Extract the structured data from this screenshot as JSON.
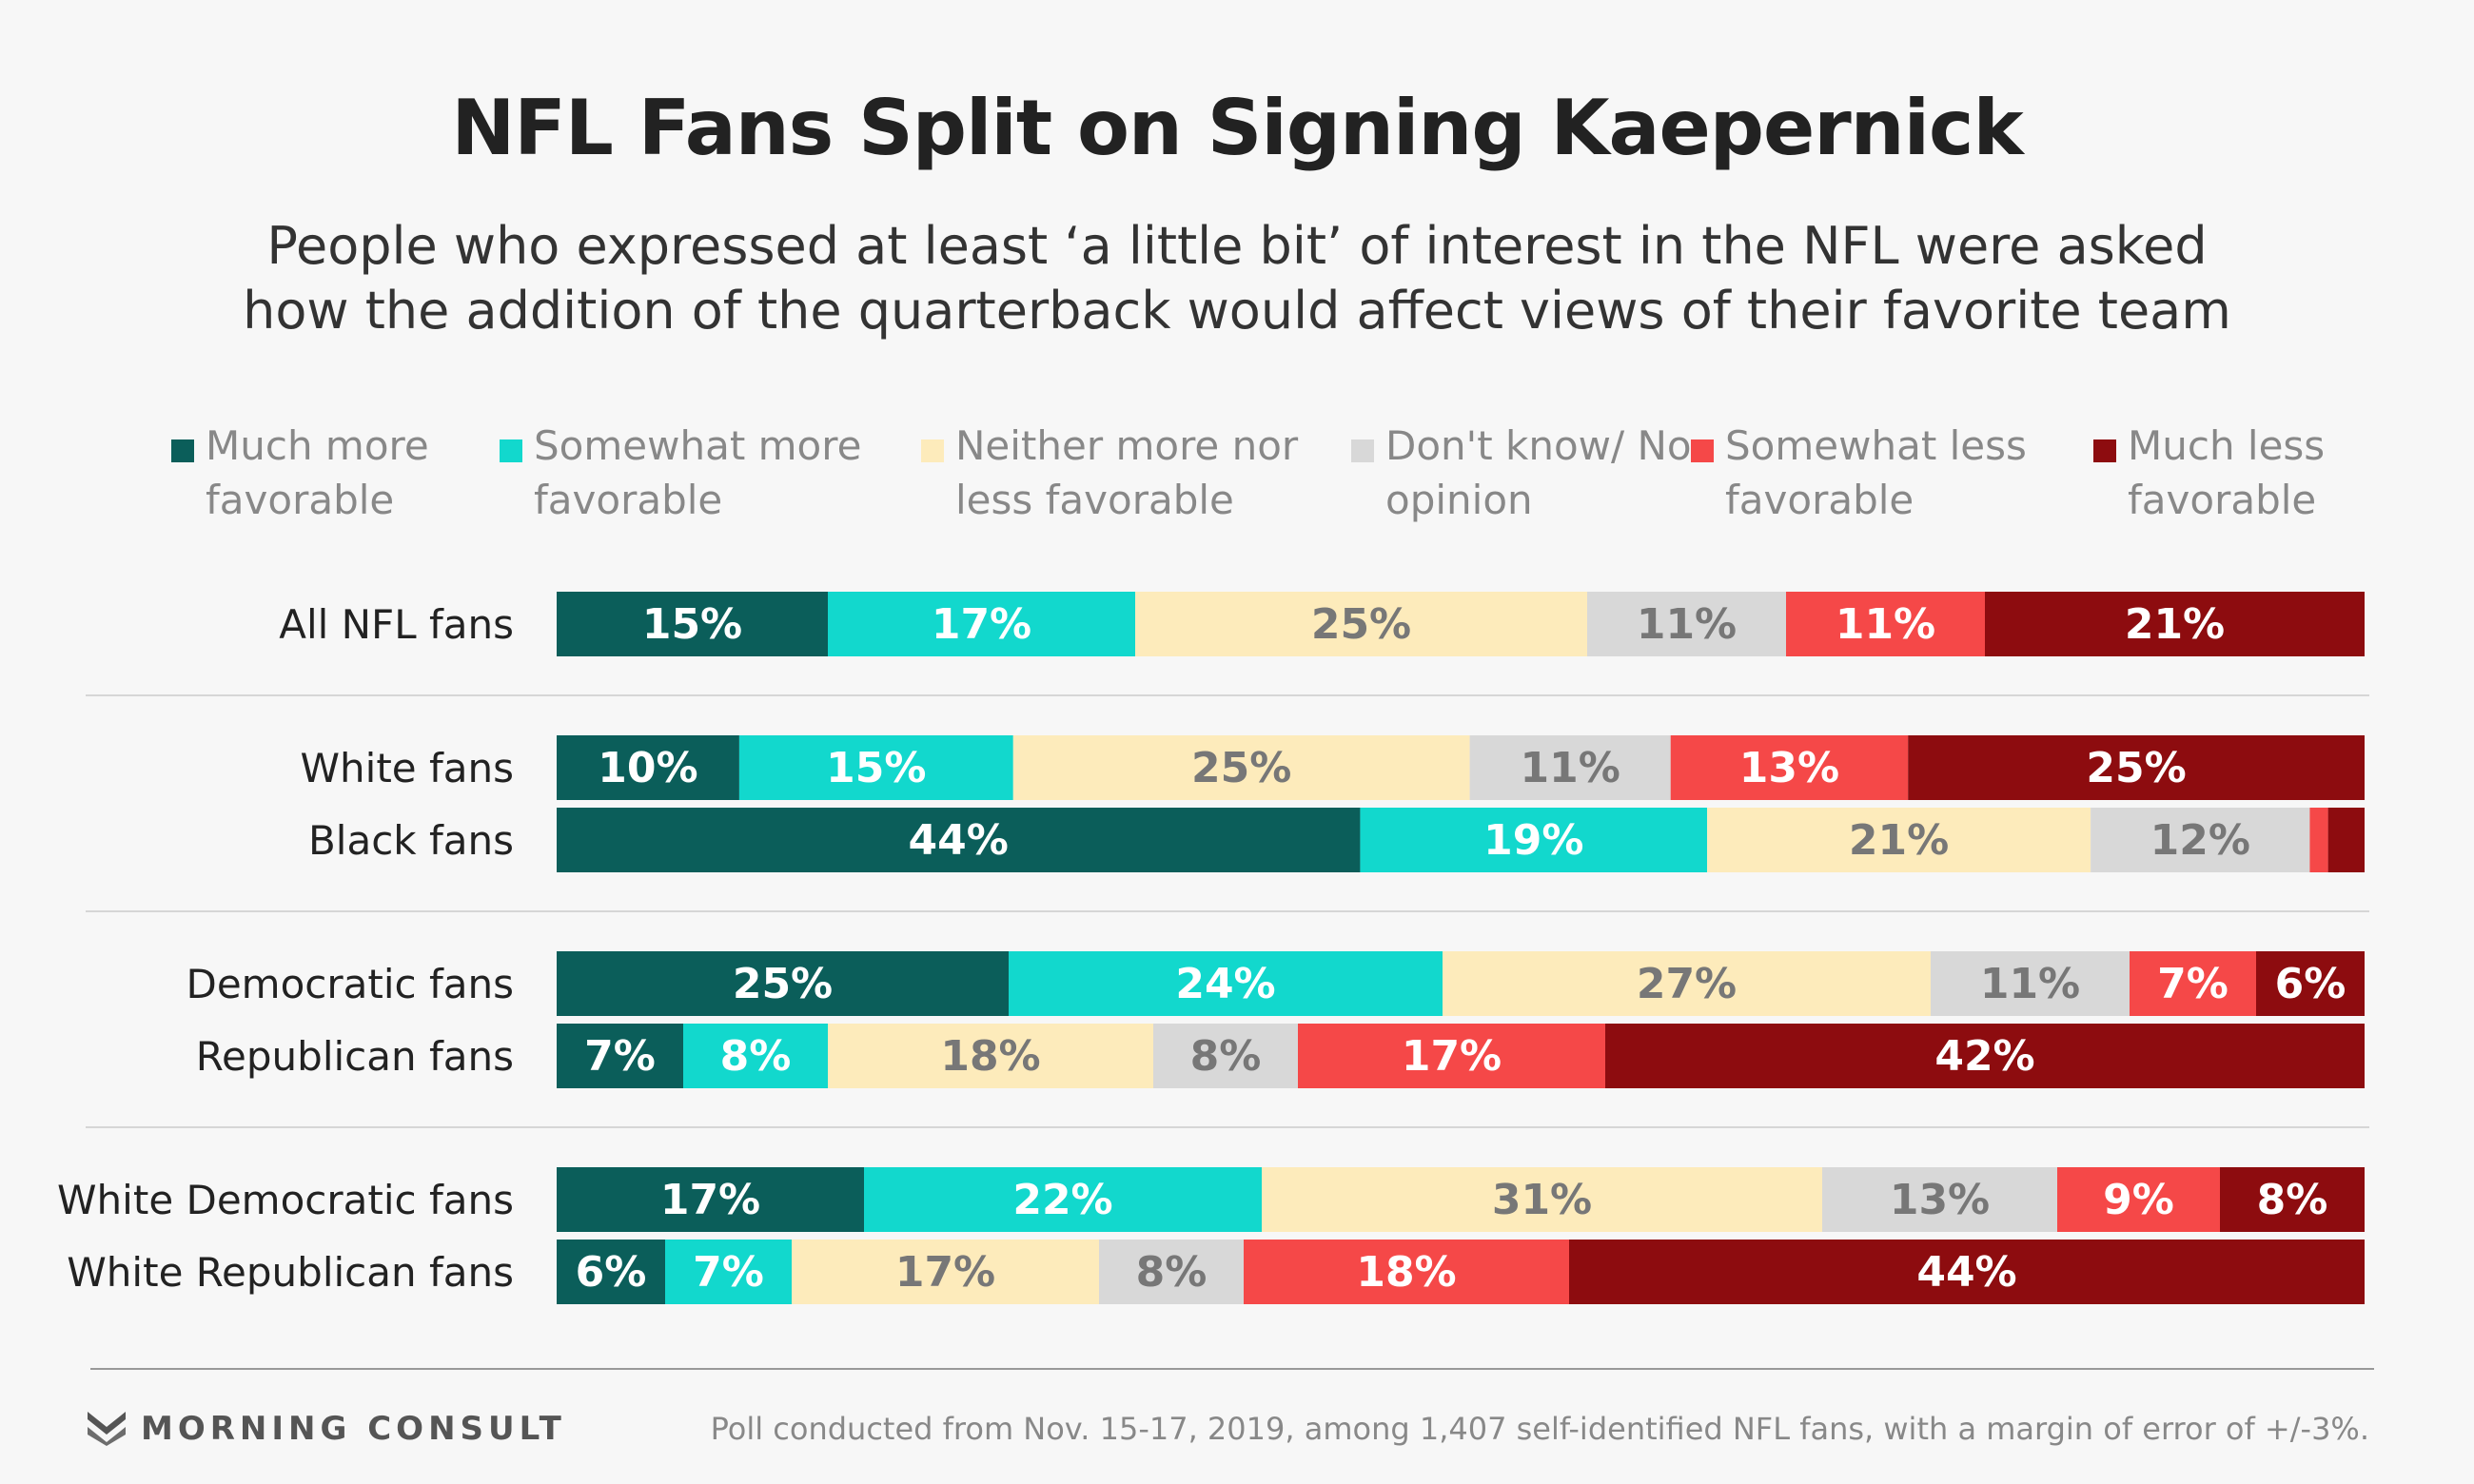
{
  "title": "NFL Fans Split on Signing Kaepernick",
  "subtitle": [
    "People who expressed at least ‘a little bit’ of interest in the NFL were asked",
    "how the addition of the quarterback would affect views of their favorite team"
  ],
  "source_note": "Poll conducted from Nov. 15-17, 2019, among 1,407 self-identified NFL fans, with a margin of error of +/-3%.",
  "brand": "MORNING CONSULT",
  "chart_data": {
    "type": "bar",
    "orientation": "horizontal",
    "stacked": "100%",
    "categories": [
      "All NFL fans",
      "White fans",
      "Black fans",
      "Democratic fans",
      "Republican fans",
      "White Democratic fans",
      "White Republican fans"
    ],
    "series": [
      {
        "name": "Much more favorable",
        "color": "#0b5e5a",
        "label_color": "#ffffff",
        "values": [
          15,
          10,
          44,
          25,
          7,
          17,
          6
        ],
        "labels": [
          "15%",
          "10%",
          "44%",
          "25%",
          "7%",
          "17%",
          "6%"
        ]
      },
      {
        "name": "Somewhat more favorable",
        "color": "#12d8cd",
        "label_color": "#ffffff",
        "values": [
          17,
          15,
          19,
          24,
          8,
          22,
          7
        ],
        "labels": [
          "17%",
          "15%",
          "19%",
          "24%",
          "8%",
          "22%",
          "7%"
        ]
      },
      {
        "name": "Neither more nor less favorable",
        "color": "#fdebbb",
        "label_color": "#777777",
        "values": [
          25,
          25,
          21,
          27,
          18,
          31,
          17
        ],
        "labels": [
          "25%",
          "25%",
          "21%",
          "27%",
          "18%",
          "31%",
          "17%"
        ]
      },
      {
        "name": "Don't know/ No opinion",
        "color": "#d8d8d8",
        "label_color": "#777777",
        "values": [
          11,
          11,
          12,
          11,
          8,
          13,
          8
        ],
        "labels": [
          "11%",
          "11%",
          "12%",
          "11%",
          "8%",
          "13%",
          "8%"
        ]
      },
      {
        "name": "Somewhat less favorable",
        "color": "#f54848",
        "label_color": "#ffffff",
        "values": [
          11,
          13,
          1,
          7,
          17,
          9,
          18
        ],
        "labels": [
          "11%",
          "13%",
          "",
          "7%",
          "17%",
          "9%",
          "18%"
        ]
      },
      {
        "name": "Much less favorable",
        "color": "#8d0c0f",
        "label_color": "#ffffff",
        "values": [
          21,
          25,
          2,
          6,
          42,
          8,
          44
        ],
        "labels": [
          "21%",
          "25%",
          "",
          "6%",
          "42%",
          "8%",
          "44%"
        ]
      }
    ],
    "xlim": [
      0,
      100
    ],
    "legend_position": "top",
    "grid": false
  }
}
